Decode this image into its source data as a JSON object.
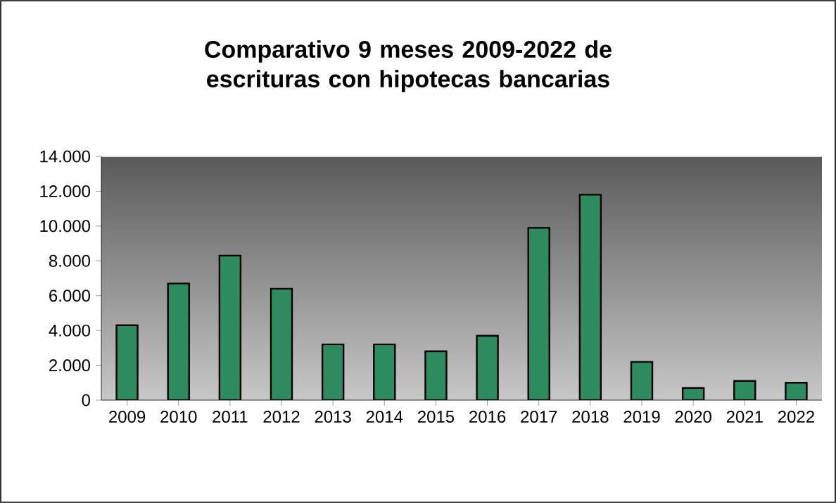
{
  "chart_data": {
    "type": "bar",
    "title": "Comparativo 9 meses 2009-2022 de escrituras con hipotecas bancarias",
    "categories": [
      "2009",
      "2010",
      "2011",
      "2012",
      "2013",
      "2014",
      "2015",
      "2016",
      "2017",
      "2018",
      "2019",
      "2020",
      "2021",
      "2022"
    ],
    "values": [
      4300,
      6700,
      8300,
      6400,
      3200,
      3200,
      2800,
      3700,
      9900,
      11800,
      2200,
      700,
      1100,
      1000
    ],
    "color": "#2e8b5f",
    "ylim": [
      0,
      14000
    ],
    "yticks": [
      {
        "value": 0,
        "label": "0"
      },
      {
        "value": 2000,
        "label": "2.000"
      },
      {
        "value": 4000,
        "label": "4.000"
      },
      {
        "value": 6000,
        "label": "6.000"
      },
      {
        "value": 8000,
        "label": "8.000"
      },
      {
        "value": 10000,
        "label": "10.000"
      },
      {
        "value": 12000,
        "label": "12.000"
      },
      {
        "value": 14000,
        "label": "14.000"
      }
    ],
    "tick_labels": "xy"
  }
}
